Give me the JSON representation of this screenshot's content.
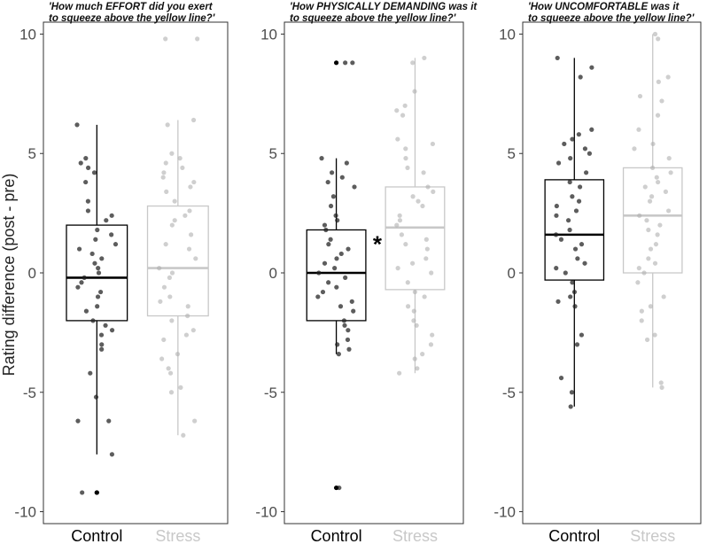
{
  "ylabel": "Rating difference (post - pre)",
  "colors": {
    "control": "#000000",
    "stress": "#c8c8c8"
  },
  "chart_data": [
    {
      "type": "box",
      "title": [
        "'How much EFFORT did you exert",
        "to squeeze above the yellow line?'"
      ],
      "ylim": [
        -10.5,
        10.5
      ],
      "yticks": [
        -10,
        -5,
        0,
        5,
        10
      ],
      "categories": [
        "Control",
        "Stress"
      ],
      "significance": "",
      "series": [
        {
          "name": "Control",
          "box": {
            "min": -7.6,
            "q1": -2.0,
            "median": -0.2,
            "q3": 2.0,
            "max": 6.2
          },
          "points": [
            6.2,
            4.8,
            4.6,
            4.4,
            4.2,
            3.8,
            3.0,
            2.6,
            2.4,
            2.2,
            1.8,
            1.6,
            1.4,
            1.2,
            1.0,
            0.8,
            0.6,
            0.4,
            0.2,
            0.0,
            -0.2,
            -0.4,
            -0.6,
            -0.8,
            -1.0,
            -1.4,
            -1.6,
            -2.0,
            -2.2,
            -2.4,
            -2.6,
            -3.0,
            -3.2,
            -4.2,
            -5.2,
            -6.2,
            -6.2,
            -7.6,
            -9.2,
            -9.2
          ],
          "outliers": [
            -9.2
          ]
        },
        {
          "name": "Stress",
          "box": {
            "min": -6.8,
            "q1": -1.8,
            "median": 0.2,
            "q3": 2.8,
            "max": 6.4
          },
          "points": [
            9.8,
            9.8,
            6.4,
            6.2,
            5.0,
            4.8,
            4.6,
            4.4,
            4.2,
            4.0,
            3.8,
            3.6,
            3.4,
            3.0,
            2.6,
            2.4,
            2.2,
            2.0,
            1.6,
            1.2,
            1.0,
            0.6,
            0.2,
            0.0,
            -0.2,
            -0.6,
            -1.0,
            -1.2,
            -1.4,
            -1.8,
            -2.0,
            -2.4,
            -2.6,
            -2.8,
            -3.4,
            -3.6,
            -4.0,
            -4.2,
            -4.8,
            -5.0,
            -6.2,
            -6.8
          ],
          "outliers": []
        }
      ]
    },
    {
      "type": "box",
      "title": [
        "'How PHYSICALLY DEMANDING was it",
        "to squeeze above the yellow line?'"
      ],
      "ylim": [
        -10.5,
        10.5
      ],
      "yticks": [
        -10,
        -5,
        0,
        5,
        10
      ],
      "categories": [
        "Control",
        "Stress"
      ],
      "significance": "*",
      "series": [
        {
          "name": "Control",
          "box": {
            "min": -3.4,
            "q1": -2.0,
            "median": 0.0,
            "q3": 1.8,
            "max": 4.8
          },
          "points": [
            8.8,
            8.8,
            4.8,
            4.6,
            4.2,
            4.0,
            3.8,
            3.6,
            3.2,
            2.8,
            2.4,
            2.2,
            2.0,
            1.8,
            1.4,
            1.2,
            1.0,
            0.8,
            0.6,
            0.4,
            0.2,
            0.0,
            -0.2,
            -0.4,
            -0.6,
            -0.8,
            -1.0,
            -1.2,
            -1.4,
            -1.6,
            -2.0,
            -2.2,
            -2.4,
            -2.8,
            -3.0,
            -3.2,
            -3.4,
            -9.0
          ],
          "outliers": [
            8.8,
            -9.0
          ]
        },
        {
          "name": "Stress",
          "box": {
            "min": -4.2,
            "q1": -0.7,
            "median": 1.9,
            "q3": 3.6,
            "max": 9.0
          },
          "points": [
            9.0,
            8.8,
            7.6,
            7.0,
            6.8,
            6.6,
            5.6,
            5.4,
            5.2,
            4.8,
            4.4,
            4.2,
            3.6,
            3.4,
            3.2,
            3.0,
            2.8,
            2.4,
            2.2,
            2.0,
            1.6,
            1.4,
            1.2,
            1.0,
            0.6,
            0.4,
            0.2,
            0.0,
            -0.4,
            -0.8,
            -1.0,
            -1.4,
            -1.6,
            -2.0,
            -2.2,
            -2.6,
            -3.0,
            -3.4,
            -3.6,
            -4.0,
            -4.2
          ],
          "outliers": []
        }
      ]
    },
    {
      "type": "box",
      "title": [
        "'How UNCOMFORTABLE was it",
        "to squeeze above the yellow line?'"
      ],
      "ylim": [
        -10.5,
        10.5
      ],
      "yticks": [
        -10,
        -5,
        0,
        5,
        10
      ],
      "categories": [
        "Control",
        "Stress"
      ],
      "significance": "",
      "series": [
        {
          "name": "Control",
          "box": {
            "min": -5.6,
            "q1": -0.3,
            "median": 1.6,
            "q3": 3.9,
            "max": 9.0
          },
          "points": [
            9.0,
            8.6,
            8.2,
            6.0,
            5.8,
            5.6,
            5.4,
            5.2,
            5.0,
            4.8,
            4.6,
            4.2,
            3.8,
            3.6,
            3.2,
            3.0,
            2.8,
            2.6,
            2.4,
            2.2,
            1.8,
            1.6,
            1.4,
            1.2,
            1.0,
            0.6,
            0.4,
            0.2,
            0.0,
            -0.4,
            -0.8,
            -1.0,
            -1.2,
            -1.4,
            -2.6,
            -3.0,
            -4.4,
            -5.0,
            -5.6
          ],
          "outliers": []
        },
        {
          "name": "Stress",
          "box": {
            "min": -4.8,
            "q1": 0.0,
            "median": 2.4,
            "q3": 4.4,
            "max": 10.0
          },
          "points": [
            10.0,
            9.8,
            8.2,
            8.0,
            7.4,
            7.2,
            6.6,
            6.0,
            5.4,
            5.2,
            4.8,
            4.4,
            4.2,
            4.0,
            3.8,
            3.6,
            3.4,
            3.2,
            3.0,
            2.6,
            2.4,
            2.2,
            2.0,
            1.8,
            1.6,
            1.2,
            1.0,
            0.6,
            0.4,
            0.2,
            0.0,
            -0.4,
            -1.0,
            -1.4,
            -1.6,
            -2.0,
            -2.6,
            -2.8,
            -4.6,
            -4.8
          ],
          "outliers": []
        }
      ]
    }
  ]
}
